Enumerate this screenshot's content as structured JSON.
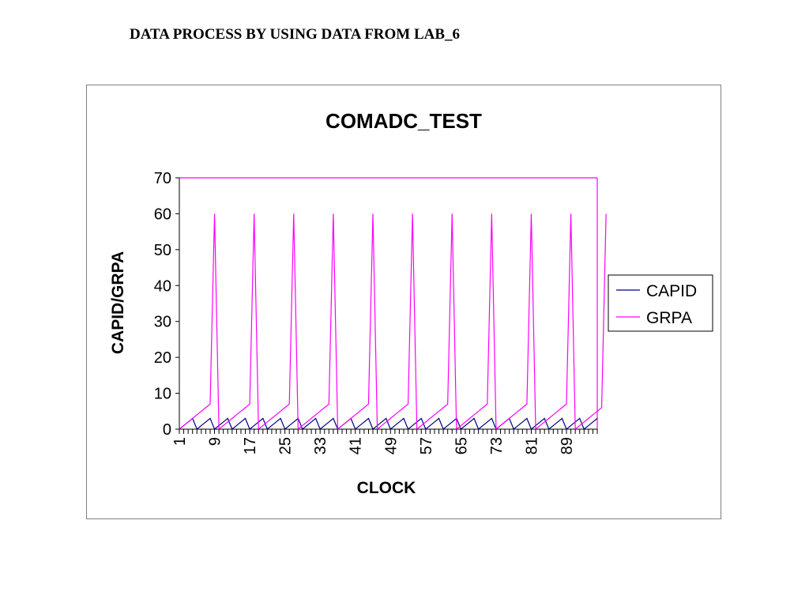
{
  "page": {
    "heading": "DATA PROCESS BY USING DATA FROM LAB_6"
  },
  "chart_data": {
    "type": "line",
    "title": "COMADC_TEST",
    "xlabel": "CLOCK",
    "ylabel": "CAPID/GRPA",
    "ylim": [
      0,
      70
    ],
    "yticks": [
      0,
      10,
      20,
      30,
      40,
      50,
      60,
      70
    ],
    "x_first": 1,
    "x_count": 96,
    "xtick_labels": [
      "1",
      "9",
      "17",
      "25",
      "33",
      "41",
      "49",
      "57",
      "65",
      "73",
      "81",
      "89"
    ],
    "grid": false,
    "legend_position": "right",
    "colors": {
      "CAPID": "#000080",
      "GRPA": "#ff00ff"
    },
    "series": [
      {
        "name": "CAPID",
        "values": [
          0,
          1,
          2,
          3,
          0,
          1,
          2,
          3,
          0,
          1,
          2,
          3,
          0,
          1,
          2,
          3,
          0,
          1,
          2,
          3,
          0,
          1,
          2,
          3,
          0,
          1,
          2,
          3,
          0,
          1,
          2,
          3,
          0,
          1,
          2,
          3,
          0,
          1,
          2,
          3,
          0,
          1,
          2,
          3,
          0,
          1,
          2,
          3,
          0,
          1,
          2,
          3,
          0,
          1,
          2,
          3,
          0,
          1,
          2,
          3,
          0,
          1,
          2,
          3,
          0,
          1,
          2,
          3,
          0,
          1,
          2,
          3,
          0,
          1,
          2,
          3,
          0,
          1,
          2,
          3,
          0,
          1,
          2,
          3,
          0,
          1,
          2,
          3,
          0,
          1,
          2,
          3,
          0,
          1,
          2,
          3
        ]
      },
      {
        "name": "GRPA",
        "values": [
          0,
          1,
          2,
          3,
          4,
          5,
          6,
          7,
          60,
          0,
          1,
          2,
          3,
          4,
          5,
          6,
          7,
          60,
          0,
          1,
          2,
          3,
          4,
          5,
          6,
          7,
          60,
          0,
          1,
          2,
          3,
          4,
          5,
          6,
          7,
          60,
          0,
          1,
          2,
          3,
          4,
          5,
          6,
          7,
          60,
          0,
          1,
          2,
          3,
          4,
          5,
          6,
          7,
          60,
          0,
          1,
          2,
          3,
          4,
          5,
          6,
          7,
          60,
          0,
          1,
          2,
          3,
          4,
          5,
          6,
          7,
          60,
          0,
          1,
          2,
          3,
          4,
          5,
          6,
          7,
          60,
          0,
          1,
          2,
          3,
          4,
          5,
          6,
          7,
          60,
          0,
          1,
          2,
          3,
          4,
          5,
          6,
          60
        ]
      }
    ]
  }
}
